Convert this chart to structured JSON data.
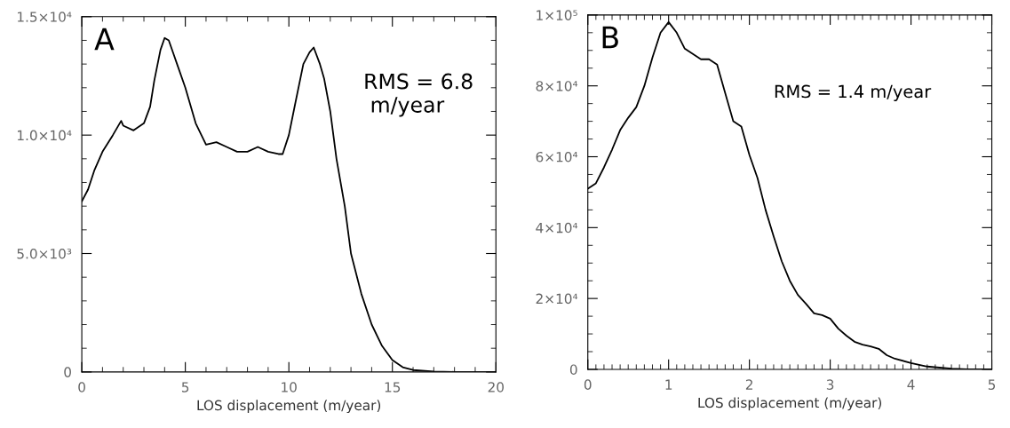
{
  "chart_data": [
    {
      "type": "line",
      "xlabel": "LOS displacement (m/year)",
      "annotations": [
        "A",
        "RMS = 6.8\n m/year"
      ],
      "xlim": [
        0,
        20
      ],
      "xticks": [
        0,
        5,
        10,
        15,
        20
      ],
      "ylim": [
        0,
        15000
      ],
      "yticks": [
        {
          "value": 0,
          "label": "0"
        },
        {
          "value": 5000,
          "label": "5.0×10³"
        },
        {
          "value": 10000,
          "label": "1.0×10⁴"
        },
        {
          "value": 15000,
          "label": "1.5×10⁴"
        }
      ],
      "x": [
        0,
        0.3,
        0.6,
        1.0,
        1.5,
        1.9,
        2.0,
        2.5,
        3.0,
        3.3,
        3.5,
        3.8,
        4.0,
        4.2,
        4.4,
        4.6,
        5.0,
        5.5,
        6.0,
        6.5,
        7.0,
        7.5,
        8.0,
        8.5,
        9.0,
        9.5,
        9.7,
        10.0,
        10.3,
        10.7,
        11.0,
        11.2,
        11.5,
        11.7,
        12.0,
        12.3,
        12.7,
        13.0,
        13.5,
        14.0,
        14.5,
        15.0,
        15.5,
        16.0,
        17.0,
        18.0,
        20.0
      ],
      "series": [
        {
          "color": "#000000",
          "values": [
            7200,
            7700,
            8500,
            9300,
            10000,
            10600,
            10400,
            10200,
            10500,
            11200,
            12300,
            13600,
            14100,
            14000,
            13500,
            13000,
            12000,
            10500,
            9600,
            9700,
            9500,
            9300,
            9300,
            9500,
            9300,
            9200,
            9200,
            10000,
            11300,
            13000,
            13500,
            13700,
            13000,
            12400,
            11000,
            9000,
            7000,
            5000,
            3300,
            2000,
            1100,
            500,
            200,
            80,
            20,
            0,
            0
          ]
        }
      ],
      "grid": false,
      "marker": "none",
      "line_style": "solid"
    },
    {
      "type": "line",
      "xlabel": "LOS displacement (m/year)",
      "annotations": [
        "B",
        "RMS = 1.4 m/year"
      ],
      "xlim": [
        0,
        5
      ],
      "xticks": [
        0,
        1,
        2,
        3,
        4,
        5
      ],
      "ylim": [
        0,
        100000
      ],
      "yticks": [
        {
          "value": 0,
          "label": "0"
        },
        {
          "value": 20000,
          "label": "2×10⁴"
        },
        {
          "value": 40000,
          "label": "4×10⁴"
        },
        {
          "value": 60000,
          "label": "6×10⁴"
        },
        {
          "value": 80000,
          "label": "8×10⁴"
        },
        {
          "value": 100000,
          "label": "1×10⁵"
        }
      ],
      "x": [
        0,
        0.1,
        0.2,
        0.3,
        0.4,
        0.5,
        0.6,
        0.7,
        0.8,
        0.9,
        1.0,
        1.1,
        1.2,
        1.3,
        1.4,
        1.5,
        1.6,
        1.7,
        1.8,
        1.9,
        2.0,
        2.1,
        2.2,
        2.3,
        2.4,
        2.5,
        2.6,
        2.7,
        2.8,
        2.9,
        3.0,
        3.1,
        3.2,
        3.3,
        3.4,
        3.5,
        3.6,
        3.7,
        3.8,
        4.0,
        4.2,
        4.5,
        4.7,
        5.0
      ],
      "series": [
        {
          "color": "#000000",
          "values": [
            51000,
            52500,
            57000,
            62000,
            67500,
            71000,
            74000,
            80000,
            88000,
            95000,
            98000,
            95000,
            90500,
            89000,
            87500,
            87500,
            86000,
            78000,
            70000,
            68500,
            60500,
            54000,
            45000,
            37500,
            30500,
            25000,
            21000,
            18500,
            15800,
            15300,
            14300,
            11500,
            9500,
            7800,
            7000,
            6500,
            5800,
            4000,
            3000,
            1800,
            800,
            200,
            0,
            0
          ]
        }
      ],
      "grid": false,
      "marker": "none",
      "line_style": "solid"
    }
  ]
}
